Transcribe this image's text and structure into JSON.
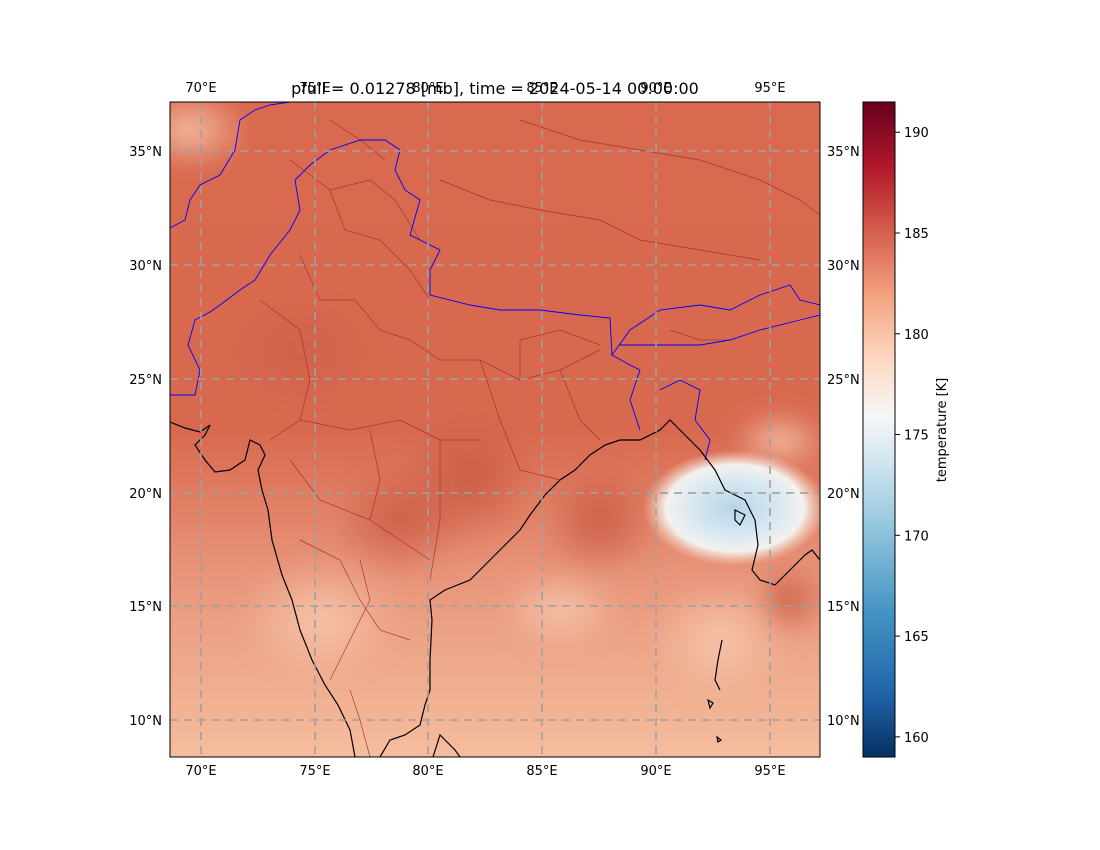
{
  "title": "pfull = 0.01278 [mb], time = 2024-05-14 00:00:00",
  "title_ghost": [
    "75°E",
    "80°E",
    "85°E",
    "90°E"
  ],
  "lon_ticks": [
    "70°E",
    "75°E",
    "80°E",
    "85°E",
    "90°E",
    "95°E"
  ],
  "lon_values": [
    70,
    75,
    80,
    85,
    90,
    95
  ],
  "lat_ticks": [
    "35°N",
    "30°N",
    "25°N",
    "20°N",
    "15°N",
    "10°N"
  ],
  "lat_values": [
    35,
    30,
    25,
    20,
    15,
    10
  ],
  "extent": {
    "lon_min": 68.7,
    "lon_max": 97.3,
    "lat_min": 8.3,
    "lat_max": 37.2
  },
  "colorbar": {
    "label": "temperature [K]",
    "ticks": [
      "160",
      "165",
      "170",
      "175",
      "180",
      "185",
      "190"
    ],
    "tick_values": [
      160,
      165,
      170,
      175,
      180,
      185,
      190
    ],
    "vmin": 159.0,
    "vmax": 191.5,
    "colormap": "RdBu_r"
  },
  "colors": {
    "gridline": "#a0a0a0",
    "coastline": "#000000",
    "country_border": "#0000ff",
    "state_border": "#a0302a",
    "cold_anomaly": "#c9dfee",
    "warm_field": "#dd7a60"
  }
}
